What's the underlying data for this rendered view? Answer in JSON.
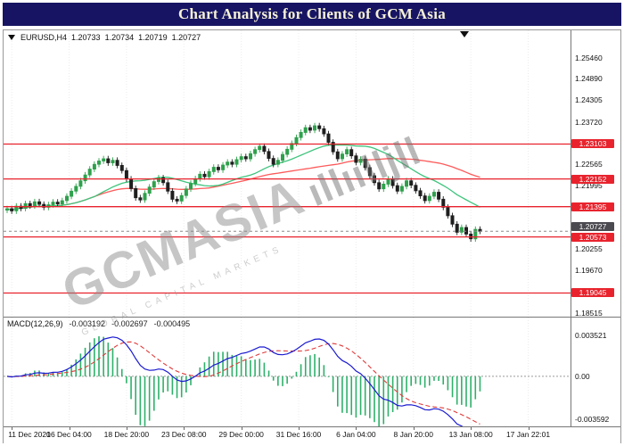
{
  "title": "Chart Analysis for Clients of GCM Asia",
  "symbol": {
    "label": "EURUSD,H4",
    "open": "1.20733",
    "high": "1.20734",
    "low": "1.20719",
    "close": "1.20727"
  },
  "watermark": {
    "brand": "GCMASIA",
    "mark": "ıllıılljll",
    "subtitle": "GLOBAL CAPITAL MARKETS"
  },
  "colors": {
    "title_bg": "#171563",
    "title_text": "#f6f2d7",
    "level": "#e8232d",
    "up": "#2fa14c",
    "down": "#1f1f1f",
    "ma_fast": "#3fc47d",
    "ma_slow": "#ff5a5a",
    "macd_line": "#1b1bd0",
    "macd_signal": "#e03a3a",
    "macd_hist": "#2eb06a",
    "badge_current_bg": "#4a4a50"
  },
  "chart_data": [
    {
      "type": "candlestick",
      "title": "EURUSD,H4",
      "ylim": [
        1.184,
        1.262
      ],
      "y_ticks": [
        "1.25460",
        "1.24890",
        "1.24305",
        "1.23720",
        "1.22565",
        "1.21995",
        "1.20255",
        "1.19670",
        "1.18515"
      ],
      "x_ticks": [
        "11 Dec 2020",
        "16 Dec 04:00",
        "18 Dec 20:00",
        "23 Dec 08:00",
        "29 Dec 00:00",
        "31 Dec 16:00",
        "6 Jan 04:00",
        "8 Jan 20:00",
        "13 Jan 08:00",
        "17 Jan 22:01"
      ],
      "levels": [
        1.23103,
        1.22152,
        1.21395,
        1.20573,
        1.19045
      ],
      "current_price": 1.20727,
      "first_open": 1.213,
      "wick": 0.0008,
      "closes": [
        1.2134,
        1.2128,
        1.2141,
        1.2135,
        1.2148,
        1.2142,
        1.2153,
        1.2146,
        1.2138,
        1.2145,
        1.2152,
        1.2147,
        1.2156,
        1.2168,
        1.2182,
        1.2195,
        1.221,
        1.2226,
        1.2242,
        1.2255,
        1.2264,
        1.227,
        1.2259,
        1.2266,
        1.2252,
        1.2238,
        1.2215,
        1.2189,
        1.2164,
        1.2158,
        1.2176,
        1.2193,
        1.2208,
        1.2218,
        1.2205,
        1.2182,
        1.216,
        1.2155,
        1.217,
        1.2188,
        1.2203,
        1.2216,
        1.2228,
        1.2221,
        1.2235,
        1.2247,
        1.224,
        1.2253,
        1.2261,
        1.2255,
        1.2268,
        1.2276,
        1.227,
        1.2284,
        1.2295,
        1.2304,
        1.229,
        1.2271,
        1.2255,
        1.2266,
        1.2282,
        1.2296,
        1.2312,
        1.2328,
        1.2342,
        1.2355,
        1.2348,
        1.236,
        1.2352,
        1.2338,
        1.2315,
        1.2289,
        1.227,
        1.2283,
        1.2295,
        1.2278,
        1.226,
        1.2269,
        1.2246,
        1.2224,
        1.2205,
        1.2188,
        1.2201,
        1.2215,
        1.2197,
        1.2182,
        1.2195,
        1.221,
        1.2198,
        1.2183,
        1.2169,
        1.2156,
        1.2168,
        1.2179,
        1.216,
        1.2138,
        1.2115,
        1.2092,
        1.207,
        1.2083,
        1.2065,
        1.2052,
        1.2078,
        1.20727
      ]
    },
    {
      "type": "macd",
      "label": "MACD(12,26,9)",
      "params": [
        12,
        26,
        9
      ],
      "display_values": [
        "-0.003192",
        "-0.002697",
        "-0.000495"
      ],
      "y_ticks": [
        "0.003521",
        "0.00",
        "-0.003592"
      ],
      "ylim": [
        -0.00425,
        0.005
      ]
    }
  ]
}
